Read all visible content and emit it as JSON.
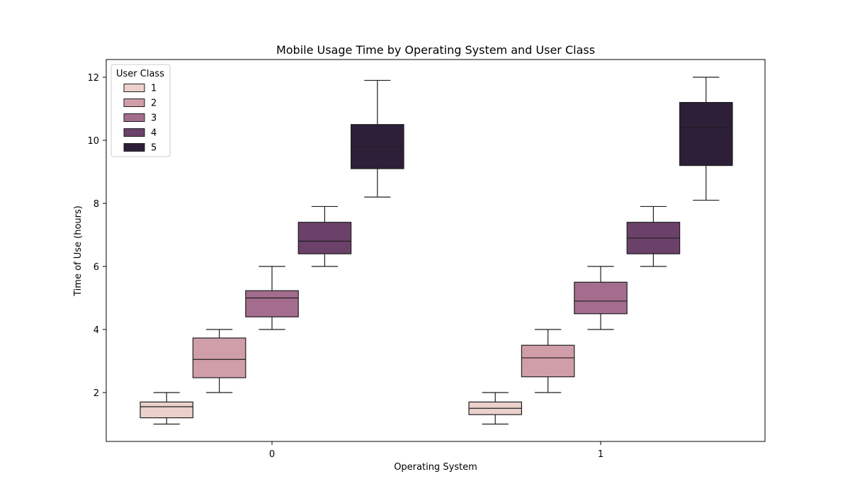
{
  "chart_data": {
    "type": "box",
    "title": "Mobile Usage Time by Operating System and User Class",
    "xlabel": "Operating System",
    "ylabel": "Time of Use (hours)",
    "categories": [
      "0",
      "1"
    ],
    "ylim": [
      0.5,
      12.6
    ],
    "yticks": [
      2,
      4,
      6,
      8,
      10,
      12
    ],
    "grid": false,
    "legend": {
      "title": "User Class",
      "placement": "top-left"
    },
    "series": [
      {
        "name": "1",
        "color": "#EBD1CB",
        "boxes": [
          {
            "category": "0",
            "whisker_low": 1.0,
            "q1": 1.2,
            "median": 1.55,
            "q3": 1.7,
            "whisker_high": 2.0
          },
          {
            "category": "1",
            "whisker_low": 1.0,
            "q1": 1.3,
            "median": 1.5,
            "q3": 1.7,
            "whisker_high": 2.0
          }
        ]
      },
      {
        "name": "2",
        "color": "#D09EA9",
        "boxes": [
          {
            "category": "0",
            "whisker_low": 2.0,
            "q1": 2.47,
            "median": 3.05,
            "q3": 3.73,
            "whisker_high": 4.0
          },
          {
            "category": "1",
            "whisker_low": 2.0,
            "q1": 2.5,
            "median": 3.1,
            "q3": 3.5,
            "whisker_high": 4.0
          }
        ]
      },
      {
        "name": "3",
        "color": "#A46D8D",
        "boxes": [
          {
            "category": "0",
            "whisker_low": 4.0,
            "q1": 4.4,
            "median": 5.0,
            "q3": 5.23,
            "whisker_high": 6.0
          },
          {
            "category": "1",
            "whisker_low": 4.0,
            "q1": 4.5,
            "median": 4.9,
            "q3": 5.5,
            "whisker_high": 6.0
          }
        ]
      },
      {
        "name": "4",
        "color": "#6B416A",
        "boxes": [
          {
            "category": "0",
            "whisker_low": 6.0,
            "q1": 6.4,
            "median": 6.8,
            "q3": 7.4,
            "whisker_high": 7.9
          },
          {
            "category": "1",
            "whisker_low": 6.0,
            "q1": 6.4,
            "median": 6.9,
            "q3": 7.4,
            "whisker_high": 7.9
          }
        ]
      },
      {
        "name": "5",
        "color": "#2D1F38",
        "boxes": [
          {
            "category": "0",
            "whisker_low": 8.2,
            "q1": 9.1,
            "median": 9.8,
            "q3": 10.5,
            "whisker_high": 11.9
          },
          {
            "category": "1",
            "whisker_low": 8.1,
            "q1": 9.2,
            "median": 10.4,
            "q3": 11.2,
            "whisker_high": 12.0
          }
        ]
      }
    ]
  }
}
